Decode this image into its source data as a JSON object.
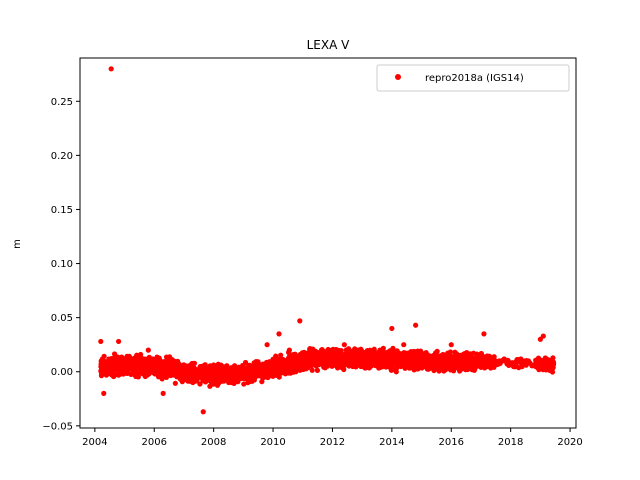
{
  "chart_data": {
    "type": "scatter",
    "title": "LEXA V",
    "xlabel": "",
    "ylabel": "m",
    "xlim": [
      2003.5,
      2020.2
    ],
    "ylim": [
      -0.052,
      0.29
    ],
    "xticks": [
      2004,
      2006,
      2008,
      2010,
      2012,
      2014,
      2016,
      2018,
      2020
    ],
    "xtick_labels": [
      "2004",
      "2006",
      "2008",
      "2010",
      "2012",
      "2014",
      "2016",
      "2018",
      "2020"
    ],
    "yticks": [
      -0.05,
      0.0,
      0.05,
      0.1,
      0.15,
      0.2,
      0.25
    ],
    "ytick_labels": [
      "−0.05",
      "0.00",
      "0.05",
      "0.10",
      "0.15",
      "0.20",
      "0.25"
    ],
    "grid": false,
    "legend_position": "top-right",
    "series": [
      {
        "name": "repro2018a (IGS14)",
        "color": "#ff0000",
        "marker": "circle",
        "x": [
          2004.2,
          2004.3,
          2004.55,
          2004.8,
          2005.0,
          2005.5,
          2005.8,
          2006.3,
          2006.7,
          2007.0,
          2007.3,
          2007.65,
          2007.9,
          2008.3,
          2008.6,
          2009.0,
          2009.4,
          2009.8,
          2010.2,
          2010.55,
          2010.9,
          2011.2,
          2011.6,
          2012.0,
          2012.4,
          2012.8,
          2013.2,
          2013.6,
          2014.0,
          2014.15,
          2014.4,
          2014.8,
          2015.2,
          2015.6,
          2016.0,
          2016.4,
          2016.8,
          2017.1,
          2017.5,
          2018.2,
          2018.6,
          2019.0,
          2019.1,
          2019.3
        ],
        "y": [
          0.028,
          -0.02,
          0.28,
          0.028,
          0.01,
          0.005,
          0.02,
          -0.02,
          0.0,
          0.004,
          -0.01,
          -0.037,
          0.0,
          0.0,
          -0.01,
          0.005,
          0.0,
          0.025,
          0.035,
          0.02,
          0.047,
          0.01,
          0.015,
          0.02,
          0.025,
          0.01,
          0.015,
          0.02,
          0.04,
          0.0,
          0.025,
          0.043,
          0.015,
          0.01,
          0.025,
          0.01,
          0.005,
          0.035,
          0.01,
          0.005,
          0.01,
          0.03,
          0.033,
          0.01
        ]
      }
    ],
    "band": {
      "x": [
        2004.2,
        2005.0,
        2006.0,
        2007.0,
        2008.0,
        2009.0,
        2010.0,
        2011.0,
        2012.0,
        2013.0,
        2014.0,
        2015.0,
        2016.0,
        2017.0,
        2017.5,
        2018.0,
        2019.0,
        2019.45
      ],
      "center": [
        0.004,
        0.006,
        0.005,
        0.0,
        -0.003,
        -0.002,
        0.003,
        0.01,
        0.013,
        0.012,
        0.012,
        0.01,
        0.009,
        0.009,
        0.008,
        0.008,
        0.007,
        0.006
      ],
      "spread": [
        0.012,
        0.012,
        0.012,
        0.013,
        0.012,
        0.012,
        0.012,
        0.012,
        0.012,
        0.012,
        0.012,
        0.012,
        0.011,
        0.011,
        0.006,
        0.005,
        0.008,
        0.008
      ]
    }
  }
}
